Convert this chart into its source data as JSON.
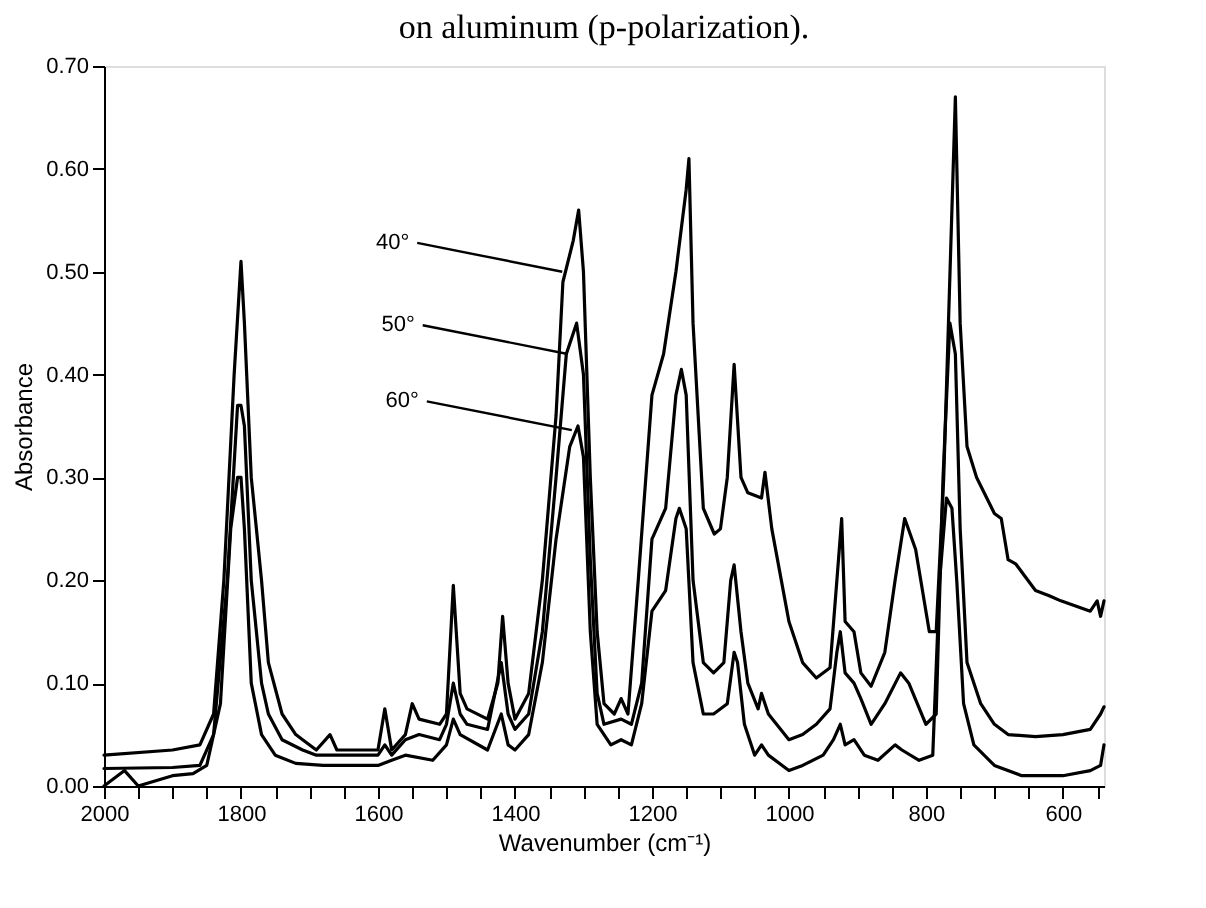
{
  "chart_data": {
    "type": "line",
    "title": "on aluminum (p-polarization).",
    "xlabel": "Wavenumber (cm⁻¹)",
    "ylabel": "Absorbance",
    "xlim": [
      2000,
      540
    ],
    "ylim": [
      0,
      0.7
    ],
    "xticks": [
      2000,
      {
        "value": 1950,
        "label": null
      },
      {
        "value": 1900,
        "label": null
      },
      {
        "value": 1850,
        "label": null
      },
      1800,
      {
        "value": 1750,
        "label": null
      },
      {
        "value": 1700,
        "label": null
      },
      {
        "value": 1650,
        "label": null
      },
      1600,
      {
        "value": 1550,
        "label": null
      },
      {
        "value": 1500,
        "label": null
      },
      {
        "value": 1450,
        "label": null
      },
      1400,
      {
        "value": 1350,
        "label": null
      },
      {
        "value": 1300,
        "label": null
      },
      {
        "value": 1250,
        "label": null
      },
      1200,
      {
        "value": 1150,
        "label": null
      },
      {
        "value": 1100,
        "label": null
      },
      {
        "value": 1050,
        "label": null
      },
      1000,
      {
        "value": 950,
        "label": null
      },
      {
        "value": 900,
        "label": null
      },
      {
        "value": 850,
        "label": null
      },
      800,
      {
        "value": 750,
        "label": null
      },
      {
        "value": 700,
        "label": null
      },
      {
        "value": 650,
        "label": null
      },
      600,
      {
        "value": 550,
        "label": null
      }
    ],
    "yticks": [
      {
        "value": 0,
        "label": "0.00"
      },
      {
        "value": 0.1,
        "label": "0.10"
      },
      {
        "value": 0.2,
        "label": "0.20"
      },
      {
        "value": 0.3,
        "label": "0.30"
      },
      {
        "value": 0.4,
        "label": "0.40"
      },
      {
        "value": 0.5,
        "label": "0.50"
      },
      {
        "value": 0.6,
        "label": "0.60"
      },
      {
        "value": 0.7,
        "label": "0.70"
      }
    ],
    "grid": false,
    "marker": "none",
    "line_style": "solid",
    "annotations": [
      {
        "text": "40°",
        "x": 1331,
        "y": 0.5
      },
      {
        "text": "50°",
        "x": 1323,
        "y": 0.42
      },
      {
        "text": "60°",
        "x": 1317,
        "y": 0.346
      }
    ],
    "series": [
      {
        "color": "#000000",
        "x": [
          2000,
          1900,
          1860,
          1840,
          1825,
          1810,
          1800,
          1795,
          1785,
          1770,
          1760,
          1740,
          1720,
          1710,
          1690,
          1670,
          1660,
          1600,
          1590,
          1580,
          1560,
          1550,
          1540,
          1510,
          1500,
          1490,
          1480,
          1470,
          1440,
          1425,
          1418,
          1410,
          1400,
          1380,
          1360,
          1340,
          1330,
          1315,
          1307,
          1300,
          1290,
          1280,
          1270,
          1255,
          1245,
          1235,
          1220,
          1200,
          1183,
          1165,
          1150,
          1146,
          1140,
          1125,
          1109,
          1100,
          1090,
          1080,
          1070,
          1060,
          1040,
          1035,
          1025,
          1000,
          980,
          960,
          940,
          930,
          923,
          918,
          905,
          895,
          880,
          860,
          845,
          831,
          815,
          795,
          785,
          774,
          757,
          750,
          740,
          726,
          700,
          690,
          680,
          669,
          640,
          620,
          603,
          560,
          550,
          545,
          540
        ],
        "values": [
          0.03,
          0.035,
          0.04,
          0.07,
          0.2,
          0.4,
          0.51,
          0.45,
          0.3,
          0.2,
          0.12,
          0.07,
          0.05,
          0.045,
          0.035,
          0.05,
          0.035,
          0.035,
          0.075,
          0.035,
          0.05,
          0.08,
          0.065,
          0.06,
          0.07,
          0.195,
          0.09,
          0.075,
          0.065,
          0.1,
          0.165,
          0.1,
          0.065,
          0.09,
          0.2,
          0.36,
          0.49,
          0.53,
          0.56,
          0.5,
          0.3,
          0.15,
          0.08,
          0.07,
          0.085,
          0.07,
          0.2,
          0.38,
          0.42,
          0.5,
          0.58,
          0.61,
          0.45,
          0.27,
          0.245,
          0.25,
          0.3,
          0.41,
          0.3,
          0.285,
          0.28,
          0.305,
          0.25,
          0.16,
          0.12,
          0.105,
          0.115,
          0.2,
          0.26,
          0.16,
          0.15,
          0.11,
          0.097,
          0.13,
          0.2,
          0.26,
          0.23,
          0.15,
          0.15,
          0.3,
          0.67,
          0.45,
          0.33,
          0.3,
          0.265,
          0.26,
          0.22,
          0.216,
          0.19,
          0.185,
          0.18,
          0.17,
          0.18,
          0.165,
          0.18
        ]
      },
      {
        "color": "#000000",
        "x": [
          2000,
          1900,
          1860,
          1840,
          1820,
          1805,
          1800,
          1795,
          1785,
          1770,
          1760,
          1740,
          1710,
          1690,
          1600,
          1590,
          1580,
          1560,
          1540,
          1510,
          1500,
          1490,
          1480,
          1470,
          1440,
          1420,
          1410,
          1400,
          1380,
          1360,
          1340,
          1325,
          1310,
          1300,
          1290,
          1280,
          1270,
          1245,
          1230,
          1215,
          1200,
          1180,
          1165,
          1157,
          1150,
          1140,
          1125,
          1110,
          1095,
          1085,
          1080,
          1070,
          1060,
          1045,
          1040,
          1030,
          1000,
          980,
          960,
          940,
          930,
          925,
          918,
          905,
          895,
          880,
          860,
          837,
          825,
          800,
          785,
          775,
          765,
          757,
          750,
          740,
          720,
          700,
          680,
          640,
          600,
          560,
          545,
          540
        ],
        "values": [
          0.017,
          0.018,
          0.02,
          0.05,
          0.2,
          0.37,
          0.37,
          0.35,
          0.2,
          0.1,
          0.07,
          0.045,
          0.035,
          0.03,
          0.03,
          0.04,
          0.03,
          0.045,
          0.05,
          0.045,
          0.06,
          0.1,
          0.07,
          0.06,
          0.055,
          0.12,
          0.07,
          0.055,
          0.07,
          0.15,
          0.3,
          0.42,
          0.45,
          0.4,
          0.22,
          0.09,
          0.06,
          0.065,
          0.06,
          0.1,
          0.24,
          0.27,
          0.38,
          0.405,
          0.38,
          0.2,
          0.12,
          0.11,
          0.12,
          0.2,
          0.215,
          0.15,
          0.1,
          0.075,
          0.09,
          0.07,
          0.045,
          0.05,
          0.06,
          0.075,
          0.13,
          0.15,
          0.11,
          0.1,
          0.085,
          0.06,
          0.08,
          0.11,
          0.1,
          0.06,
          0.07,
          0.3,
          0.45,
          0.42,
          0.25,
          0.12,
          0.08,
          0.06,
          0.05,
          0.048,
          0.05,
          0.055,
          0.07,
          0.077
        ]
      },
      {
        "color": "#000000",
        "x": [
          2000,
          1970,
          1950,
          1900,
          1870,
          1850,
          1830,
          1815,
          1805,
          1800,
          1795,
          1785,
          1770,
          1750,
          1720,
          1680,
          1600,
          1580,
          1560,
          1520,
          1500,
          1490,
          1480,
          1440,
          1420,
          1410,
          1400,
          1380,
          1360,
          1340,
          1320,
          1308,
          1300,
          1290,
          1280,
          1260,
          1245,
          1230,
          1215,
          1200,
          1180,
          1165,
          1160,
          1150,
          1140,
          1125,
          1110,
          1090,
          1080,
          1075,
          1065,
          1050,
          1040,
          1030,
          1000,
          980,
          950,
          935,
          925,
          918,
          905,
          890,
          870,
          845,
          835,
          810,
          790,
          780,
          770,
          762,
          755,
          745,
          730,
          700,
          660,
          600,
          560,
          545,
          540
        ],
        "values": [
          0.0,
          0.015,
          0.0,
          0.01,
          0.012,
          0.02,
          0.08,
          0.25,
          0.3,
          0.3,
          0.25,
          0.1,
          0.05,
          0.03,
          0.022,
          0.02,
          0.02,
          0.025,
          0.03,
          0.025,
          0.04,
          0.065,
          0.05,
          0.035,
          0.07,
          0.04,
          0.035,
          0.05,
          0.12,
          0.24,
          0.33,
          0.35,
          0.32,
          0.15,
          0.06,
          0.04,
          0.045,
          0.04,
          0.08,
          0.17,
          0.19,
          0.26,
          0.27,
          0.25,
          0.12,
          0.07,
          0.07,
          0.08,
          0.13,
          0.12,
          0.06,
          0.03,
          0.04,
          0.03,
          0.015,
          0.02,
          0.03,
          0.045,
          0.06,
          0.04,
          0.045,
          0.03,
          0.025,
          0.04,
          0.035,
          0.025,
          0.03,
          0.2,
          0.28,
          0.27,
          0.2,
          0.08,
          0.04,
          0.02,
          0.01,
          0.01,
          0.015,
          0.02,
          0.04
        ]
      }
    ]
  }
}
